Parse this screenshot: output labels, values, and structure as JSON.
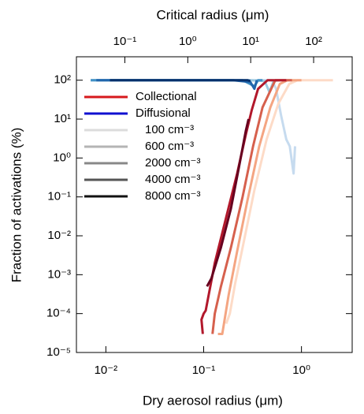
{
  "chart_data": {
    "type": "line",
    "xlabel": "Dry aerosol radius (μm)",
    "x2label": "Critical radius (μm)",
    "ylabel": "Fraction of activations (%)",
    "xscale": "log",
    "yscale": "log",
    "xlim": [
      0.005,
      3.3
    ],
    "xticks": [
      {
        "value": 0.01,
        "label": "10⁻²"
      },
      {
        "value": 0.1,
        "label": "10⁻¹"
      },
      {
        "value": 1,
        "label": "10⁰"
      }
    ],
    "x2lim": [
      0.017,
      410
    ],
    "x2ticks": [
      {
        "value": 0.1,
        "label": "10⁻¹"
      },
      {
        "value": 1,
        "label": "10⁰"
      },
      {
        "value": 10,
        "label": "10¹"
      },
      {
        "value": 100,
        "label": "10²"
      }
    ],
    "ylim": [
      1e-05,
      400
    ],
    "yticks": [
      {
        "value": 1e-05,
        "label": "10⁻⁵"
      },
      {
        "value": 0.0001,
        "label": "10⁻⁴"
      },
      {
        "value": 0.001,
        "label": "10⁻³"
      },
      {
        "value": 0.01,
        "label": "10⁻²"
      },
      {
        "value": 0.1,
        "label": "10⁻¹"
      },
      {
        "value": 1,
        "label": "10⁰"
      },
      {
        "value": 10,
        "label": "10¹"
      },
      {
        "value": 100,
        "label": "10²"
      }
    ],
    "legend": [
      {
        "label": "Collectional",
        "color": "#d7191c"
      },
      {
        "label": "Diffusional",
        "color": "#1010d0"
      },
      {
        "label": "100 cm⁻³",
        "color": "#dcdcdc"
      },
      {
        "label": "600 cm⁻³",
        "color": "#b4b4b4"
      },
      {
        "label": "2000 cm⁻³",
        "color": "#888888"
      },
      {
        "label": "4000 cm⁻³",
        "color": "#555555"
      },
      {
        "label": "8000 cm⁻³",
        "color": "#111111"
      }
    ],
    "series": [
      {
        "color": "#c6dbef",
        "x": [
          0.007,
          0.3,
          0.5,
          0.55,
          0.62,
          0.7,
          0.76,
          0.83,
          0.86
        ],
        "values": [
          100,
          100,
          100,
          60,
          12,
          3,
          2,
          0.4,
          2
        ]
      },
      {
        "color": "#9ecae1",
        "x": [
          0.007,
          0.3,
          0.42,
          0.47,
          0.52,
          0.6
        ],
        "values": [
          100,
          100,
          95,
          50,
          95,
          100
        ]
      },
      {
        "color": "#4292c6",
        "x": [
          0.007,
          0.25,
          0.33,
          0.36,
          0.4
        ],
        "values": [
          100,
          100,
          70,
          100,
          100
        ]
      },
      {
        "color": "#2166ac",
        "x": [
          0.008,
          0.2,
          0.3,
          0.33,
          0.35
        ],
        "values": [
          100,
          100,
          90,
          60,
          100
        ]
      },
      {
        "color": "#08306b",
        "x": [
          0.011,
          0.2,
          0.28,
          0.3
        ],
        "values": [
          100,
          100,
          100,
          95
        ]
      },
      {
        "color": "#fddbc7",
        "x": [
          0.17,
          0.185,
          0.21,
          0.26,
          0.33,
          0.44,
          0.58,
          0.75,
          0.91,
          2.1
        ],
        "values": [
          5.5e-05,
          0.0001,
          0.0006,
          0.008,
          0.15,
          3,
          25,
          80,
          100,
          100
        ]
      },
      {
        "color": "#f4a582",
        "x": [
          0.14,
          0.155,
          0.18,
          0.22,
          0.28,
          0.37,
          0.48,
          0.6,
          0.72,
          1.0
        ],
        "values": [
          3e-05,
          3e-05,
          0.0003,
          0.004,
          0.08,
          2,
          20,
          80,
          100,
          100
        ]
      },
      {
        "color": "#d6604d",
        "x": [
          0.123,
          0.13,
          0.15,
          0.19,
          0.25,
          0.32,
          0.4,
          0.54,
          0.8
        ],
        "values": [
          3e-05,
          0.0001,
          0.0005,
          0.005,
          0.1,
          2,
          20,
          100,
          100
        ]
      },
      {
        "color": "#b2182b",
        "x": [
          0.098,
          0.095,
          0.1,
          0.105,
          0.13,
          0.17,
          0.22,
          0.27,
          0.31,
          0.36,
          0.45,
          0.7
        ],
        "values": [
          3e-05,
          7e-05,
          0.0001,
          0.00012,
          0.002,
          0.03,
          0.4,
          4,
          17,
          60,
          100,
          100
        ]
      },
      {
        "color": "#67001f",
        "x": [
          0.108,
          0.12,
          0.15,
          0.19,
          0.23,
          0.27,
          0.288
        ],
        "values": [
          0.0005,
          0.0008,
          0.005,
          0.05,
          0.6,
          5,
          10
        ]
      }
    ]
  }
}
